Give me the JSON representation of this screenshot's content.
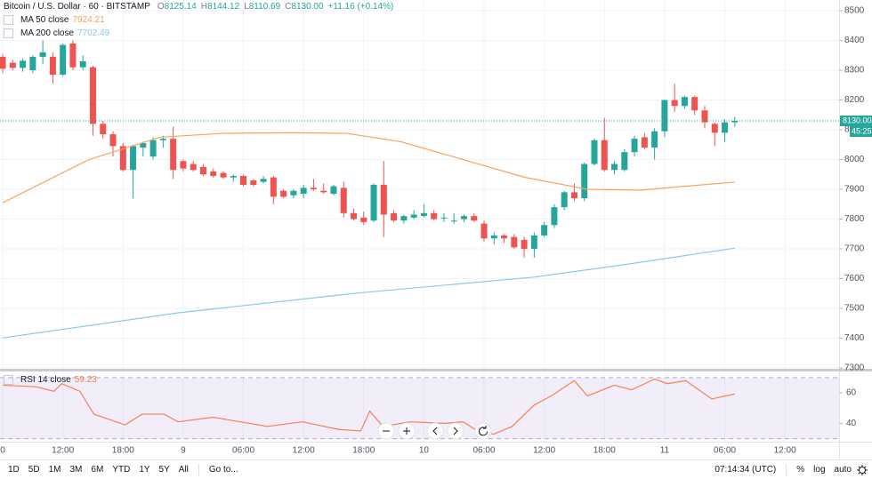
{
  "chart_data": [
    {
      "type": "candlestick",
      "title": "Bitcoin / U.S. Dollar · 60 · BITSTAMP",
      "ohlc_legend": [
        {
          "label": "O",
          "value": "8125.14"
        },
        {
          "label": "H",
          "value": "8144.12"
        },
        {
          "label": "L",
          "value": "8110.69"
        },
        {
          "label": "C",
          "value": "8130.00"
        }
      ],
      "change": "+11.16 (+0.14%)",
      "colors": {
        "up": "#26a69a",
        "down": "#ef5350"
      },
      "x": [
        0,
        1,
        2,
        3,
        4,
        5,
        6,
        7,
        8,
        9,
        10,
        11,
        12,
        13,
        14,
        15,
        16,
        17,
        18,
        19,
        20,
        21,
        22,
        23,
        24,
        25,
        26,
        27,
        28,
        29,
        30,
        31,
        32,
        33,
        34,
        35,
        36,
        37,
        38,
        39,
        40,
        41,
        42,
        43,
        44,
        45,
        46,
        47,
        48,
        49,
        50,
        51,
        52,
        53,
        54,
        55,
        56,
        57,
        58,
        59,
        60,
        61,
        62,
        63,
        64,
        65,
        66,
        67,
        68,
        69,
        70,
        71,
        72,
        73
      ],
      "open": [
        8345,
        8325,
        8308,
        8300,
        8345,
        8345,
        8285,
        8390,
        8310,
        8310,
        8120,
        8085,
        8045,
        7965,
        8040,
        8010,
        8065,
        8070,
        7995,
        7985,
        7975,
        7960,
        7955,
        7940,
        7945,
        7930,
        7925,
        7940,
        7895,
        7880,
        7885,
        7905,
        7895,
        7885,
        7905,
        7820,
        7805,
        7795,
        7915,
        7820,
        7795,
        7805,
        7810,
        7820,
        7805,
        7795,
        7800,
        7810,
        7785,
        7735,
        7745,
        7740,
        7730,
        7700,
        7745,
        7780,
        7840,
        7890,
        7870,
        7985,
        8065,
        7965,
        7965,
        8025,
        8075,
        8040,
        8095,
        8200,
        8180,
        8210,
        8165,
        8120,
        8090,
        8125
      ],
      "high": [
        8355,
        8335,
        8340,
        8350,
        8400,
        8360,
        8390,
        8400,
        8350,
        8315,
        8130,
        8095,
        8055,
        8050,
        8060,
        8075,
        8080,
        8110,
        8000,
        7995,
        7985,
        7970,
        7960,
        7950,
        7950,
        7935,
        7945,
        7945,
        7900,
        7900,
        7915,
        7935,
        7920,
        7915,
        7925,
        7835,
        7825,
        7920,
        7995,
        7830,
        7815,
        7830,
        7850,
        7830,
        7820,
        7820,
        7815,
        7820,
        7795,
        7755,
        7750,
        7750,
        7740,
        7755,
        7790,
        7850,
        7895,
        7920,
        7990,
        8070,
        8140,
        7995,
        8035,
        8080,
        8090,
        8105,
        8200,
        8255,
        8215,
        8215,
        8180,
        8125,
        8135,
        8144
      ],
      "low": [
        8290,
        8300,
        8295,
        8290,
        8320,
        8255,
        8280,
        8300,
        8300,
        8080,
        8070,
        8010,
        7960,
        7870,
        8010,
        8000,
        8040,
        7935,
        7960,
        7960,
        7945,
        7940,
        7935,
        7925,
        7910,
        7910,
        7920,
        7850,
        7870,
        7870,
        7870,
        7895,
        7885,
        7880,
        7805,
        7795,
        7780,
        7790,
        7740,
        7790,
        7785,
        7800,
        7805,
        7795,
        7790,
        7785,
        7790,
        7790,
        7725,
        7715,
        7720,
        7700,
        7670,
        7670,
        7740,
        7770,
        7830,
        7860,
        7860,
        7980,
        7960,
        7950,
        7960,
        8010,
        8035,
        8000,
        8075,
        8160,
        8170,
        8150,
        8105,
        8045,
        8060,
        8110
      ],
      "close": [
        8305,
        8308,
        8332,
        8345,
        8360,
        8285,
        8385,
        8310,
        8330,
        8120,
        8085,
        8045,
        7965,
        8045,
        8055,
        8065,
        8070,
        7965,
        7970,
        7965,
        7950,
        7945,
        7940,
        7945,
        7915,
        7915,
        7935,
        7875,
        7875,
        7895,
        7905,
        7900,
        7890,
        7910,
        7820,
        7800,
        7790,
        7915,
        7815,
        7795,
        7810,
        7815,
        7820,
        7800,
        7805,
        7795,
        7810,
        7795,
        7735,
        7745,
        7735,
        7705,
        7700,
        7745,
        7780,
        7840,
        7890,
        7870,
        7985,
        8065,
        7965,
        7985,
        8025,
        8070,
        8040,
        8095,
        8200,
        8180,
        8210,
        8165,
        8125,
        8090,
        8125,
        8130
      ],
      "series": [
        {
          "name": "MA 50 close",
          "legend_value": "7924.21",
          "color": "#f7a35c",
          "x": [
            0,
            8.6,
            15.7,
            21.9,
            29,
            34.3,
            39.7,
            45.9,
            52.1,
            58.3,
            63.6,
            67.2,
            73
          ],
          "values": [
            7855,
            8000,
            8075,
            8088,
            8090,
            8088,
            8060,
            8000,
            7940,
            7900,
            7897,
            7908,
            7924.21
          ]
        },
        {
          "name": "MA 200 close",
          "legend_value": "7702.49",
          "color": "#8ac8f0",
          "x": [
            0,
            17.5,
            35.2,
            53,
            61.8,
            73
          ],
          "values": [
            7401,
            7485,
            7551,
            7605,
            7646,
            7702.49
          ]
        }
      ],
      "last_price": {
        "value": 8130,
        "label": "8130.00"
      },
      "countdown": "45:25",
      "xlim": [
        -0.27,
        83.4
      ],
      "xticks": [
        0,
        {
          "value": 6,
          "label": "12:00"
        },
        {
          "value": 12,
          "label": "18:00"
        },
        {
          "value": 18,
          "label": "9"
        },
        {
          "value": 24,
          "label": "06:00"
        },
        {
          "value": 30,
          "label": "12:00"
        },
        {
          "value": 36,
          "label": "18:00"
        },
        {
          "value": 42,
          "label": "10"
        },
        {
          "value": 48,
          "label": "06:00"
        },
        {
          "value": 54,
          "label": "12:00"
        },
        {
          "value": 60,
          "label": "18:00"
        },
        {
          "value": 66,
          "label": "11"
        },
        {
          "value": 72,
          "label": "06:00"
        },
        {
          "value": 78,
          "label": "12:00"
        }
      ],
      "ylim": [
        7297,
        8536
      ],
      "yticks": [
        7300,
        7400,
        7500,
        7600,
        7700,
        7800,
        7900,
        8000,
        8100,
        8200,
        8300,
        8400,
        8500
      ],
      "grid": true
    },
    {
      "type": "line",
      "series": [
        {
          "name": "RSI 14 close",
          "legend_value": "59.23",
          "color": "#f57f55",
          "x": [
            0,
            3.3,
            5.1,
            5.9,
            7.7,
            9.1,
            12.2,
            13.9,
            16.1,
            17.5,
            21,
            23.7,
            26.4,
            29.9,
            33.5,
            35.7,
            36.6,
            37.9,
            40.6,
            44.1,
            45.9,
            47.6,
            49,
            50.8,
            53,
            54.7,
            57,
            58.3,
            61,
            62.7,
            65,
            66.3,
            68.1,
            70.7,
            73
          ],
          "values": [
            65,
            64,
            61,
            66,
            61,
            46,
            39,
            46,
            46,
            41,
            44,
            41,
            38,
            41,
            36,
            35,
            48,
            38,
            41,
            40,
            41,
            34,
            33,
            38,
            52,
            58,
            68,
            58,
            65,
            62,
            69,
            66,
            68,
            56,
            59.23
          ]
        }
      ],
      "bands": [
        30,
        70
      ],
      "xlim": [
        -0.27,
        83.4
      ],
      "ylim": [
        28,
        74
      ],
      "yticks": [
        40,
        60
      ],
      "grid": true
    }
  ],
  "toolbar": {
    "timeframes": [
      "1D",
      "5D",
      "1M",
      "3M",
      "6M",
      "YTD",
      "1Y",
      "5Y",
      "All"
    ],
    "goto": "Go to...",
    "clock": "07:14:34 (UTC)",
    "scale_buttons": [
      "%",
      "log",
      "auto"
    ]
  }
}
